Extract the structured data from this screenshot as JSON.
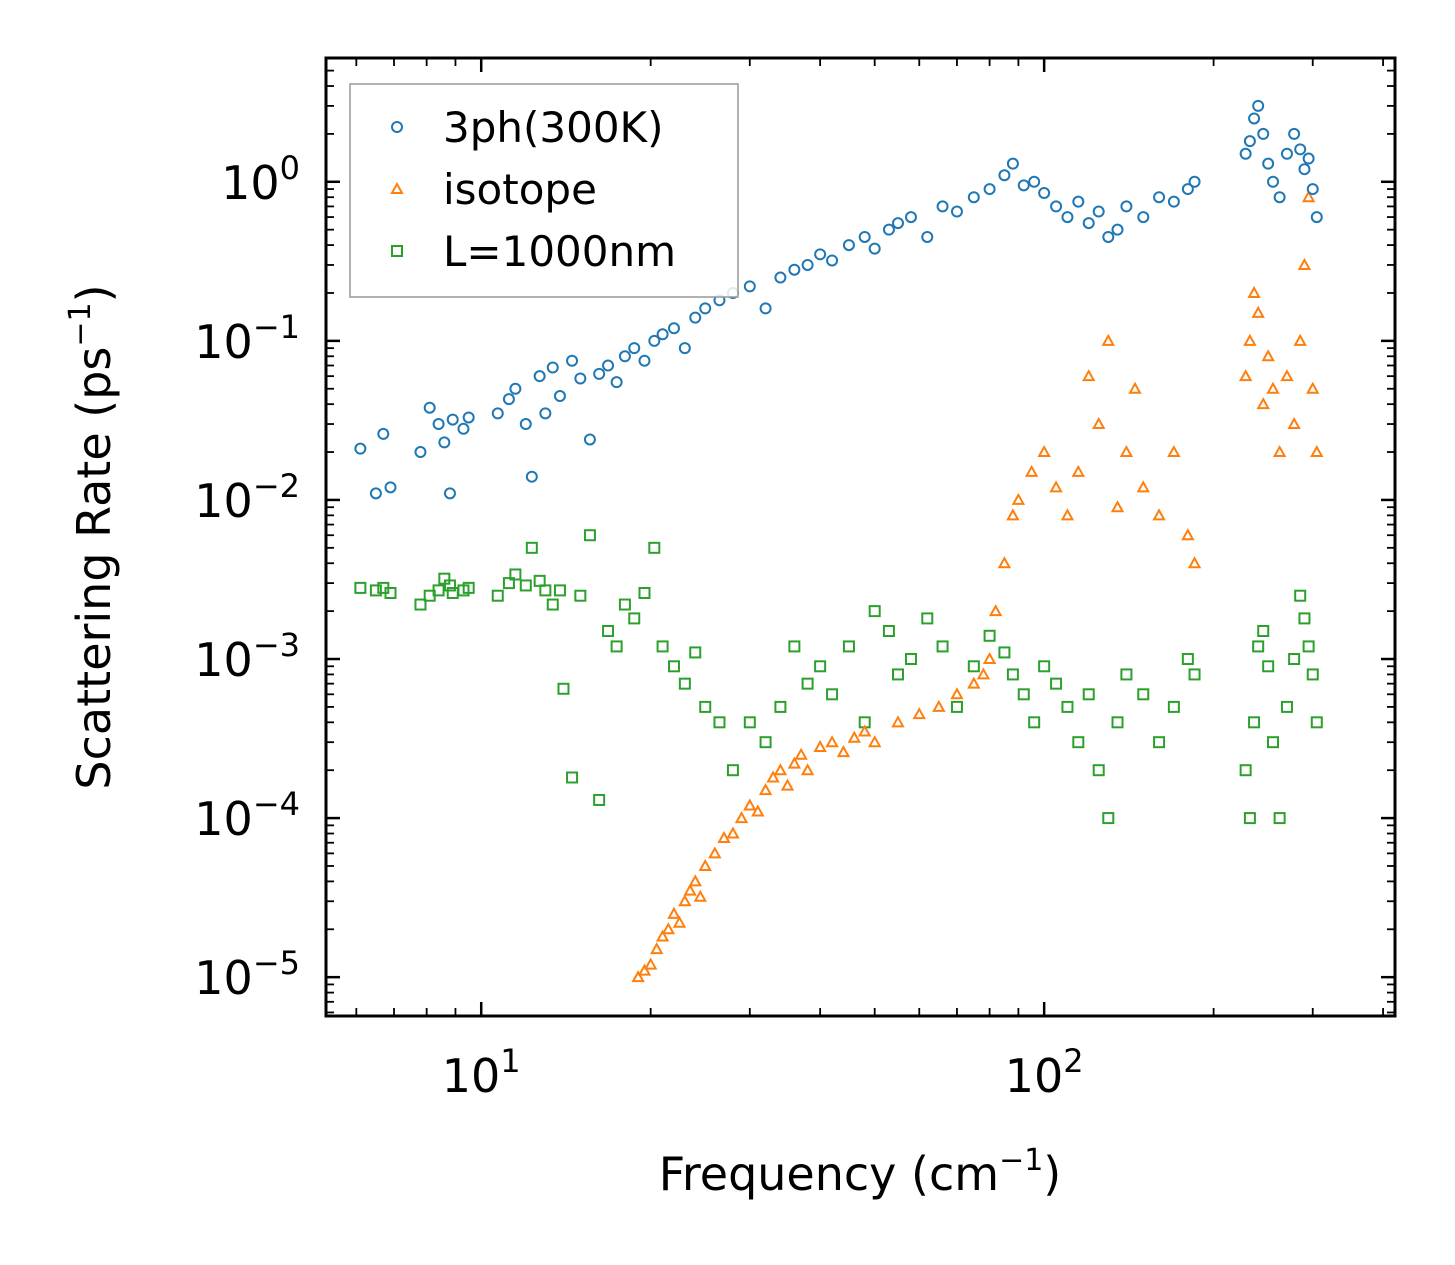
{
  "chart_data": {
    "type": "scatter",
    "title": "",
    "xlabel": "Frequency (cm",
    "xlabel_sup": "−1",
    "xlabel_close": ")",
    "ylabel": "Scattering Rate (ps",
    "ylabel_sup": "−1",
    "ylabel_close": ")",
    "xscale": "log",
    "yscale": "log",
    "xlim": [
      5.3,
      420
    ],
    "ylim": [
      5.7e-06,
      6.0
    ],
    "x_ticks": [
      {
        "base": "10",
        "exp": "1",
        "value": 10
      },
      {
        "base": "10",
        "exp": "2",
        "value": 100
      }
    ],
    "y_ticks": [
      {
        "base": "10",
        "exp": "0",
        "value": 1
      },
      {
        "base": "10",
        "exp": "−1",
        "value": 0.1
      },
      {
        "base": "10",
        "exp": "−2",
        "value": 0.01
      },
      {
        "base": "10",
        "exp": "−3",
        "value": 0.001
      },
      {
        "base": "10",
        "exp": "−4",
        "value": 0.0001
      },
      {
        "base": "10",
        "exp": "−5",
        "value": 1e-05
      }
    ],
    "legend_position": "top-left",
    "series": [
      {
        "name": "3ph(300K)",
        "color": "#1f77b4",
        "marker": "circle",
        "x": [
          6.1,
          6.5,
          6.7,
          6.9,
          7.8,
          8.1,
          8.4,
          8.6,
          8.8,
          8.9,
          9.3,
          9.5,
          10.7,
          11.2,
          11.5,
          12.0,
          12.3,
          12.7,
          13.0,
          13.4,
          13.8,
          14.5,
          15.0,
          15.6,
          16.2,
          16.8,
          17.4,
          18.0,
          18.7,
          19.5,
          20.3,
          21.0,
          22.0,
          23.0,
          24.0,
          25.0,
          26.5,
          28.0,
          30.0,
          32.0,
          34.0,
          36.0,
          38.0,
          40.0,
          42.0,
          45.0,
          48.0,
          50.0,
          53.0,
          55.0,
          58.0,
          62.0,
          66.0,
          70.0,
          75.0,
          80.0,
          85.0,
          88.0,
          92.0,
          96.0,
          100.0,
          105.0,
          110.0,
          115.0,
          120.0,
          125.0,
          130.0,
          135.0,
          140.0,
          150.0,
          160.0,
          170.0,
          180.0,
          185.0,
          228.0,
          232.0,
          236.0,
          240.0,
          245.0,
          250.0,
          255.0,
          262.0,
          270.0,
          278.0,
          285.0,
          290.0,
          295.0,
          300.0,
          305.0
        ],
        "y": [
          0.021,
          0.011,
          0.026,
          0.012,
          0.02,
          0.038,
          0.03,
          0.023,
          0.011,
          0.032,
          0.028,
          0.033,
          0.035,
          0.043,
          0.05,
          0.03,
          0.014,
          0.06,
          0.035,
          0.068,
          0.045,
          0.075,
          0.058,
          0.024,
          0.062,
          0.07,
          0.055,
          0.08,
          0.09,
          0.075,
          0.1,
          0.11,
          0.12,
          0.09,
          0.14,
          0.16,
          0.18,
          0.2,
          0.22,
          0.16,
          0.25,
          0.28,
          0.3,
          0.35,
          0.32,
          0.4,
          0.45,
          0.38,
          0.5,
          0.55,
          0.6,
          0.45,
          0.7,
          0.65,
          0.8,
          0.9,
          1.1,
          1.3,
          0.95,
          1.0,
          0.85,
          0.7,
          0.6,
          0.75,
          0.55,
          0.65,
          0.45,
          0.5,
          0.7,
          0.6,
          0.8,
          0.75,
          0.9,
          1.0,
          1.5,
          1.8,
          2.5,
          3.0,
          2.0,
          1.3,
          1.0,
          0.8,
          1.5,
          2.0,
          1.6,
          1.2,
          1.4,
          0.9,
          0.6
        ]
      },
      {
        "name": "isotope",
        "color": "#ff7f0e",
        "marker": "triangle",
        "x": [
          19.0,
          19.5,
          20.0,
          20.5,
          21.0,
          21.5,
          22.0,
          22.5,
          23.0,
          23.5,
          24.0,
          24.5,
          25.0,
          26.0,
          27.0,
          28.0,
          29.0,
          30.0,
          31.0,
          32.0,
          33.0,
          34.0,
          35.0,
          36.0,
          37.0,
          38.0,
          40.0,
          42.0,
          44.0,
          46.0,
          48.0,
          50.0,
          55.0,
          60.0,
          65.0,
          70.0,
          75.0,
          78.0,
          80.0,
          82.0,
          85.0,
          88.0,
          90.0,
          95.0,
          100.0,
          105.0,
          110.0,
          115.0,
          120.0,
          125.0,
          130.0,
          135.0,
          140.0,
          145.0,
          150.0,
          160.0,
          170.0,
          180.0,
          185.0,
          228.0,
          232.0,
          236.0,
          240.0,
          245.0,
          250.0,
          255.0,
          262.0,
          270.0,
          278.0,
          285.0,
          290.0,
          295.0,
          300.0,
          305.0
        ],
        "y": [
          1e-05,
          1.1e-05,
          1.2e-05,
          1.5e-05,
          1.8e-05,
          2e-05,
          2.5e-05,
          2.2e-05,
          3e-05,
          3.5e-05,
          4e-05,
          3.2e-05,
          5e-05,
          6e-05,
          7.5e-05,
          8e-05,
          0.0001,
          0.00012,
          0.00011,
          0.00015,
          0.00018,
          0.0002,
          0.00016,
          0.00022,
          0.00025,
          0.0002,
          0.00028,
          0.0003,
          0.00026,
          0.00032,
          0.00035,
          0.0003,
          0.0004,
          0.00045,
          0.0005,
          0.0006,
          0.0007,
          0.0008,
          0.001,
          0.002,
          0.004,
          0.008,
          0.01,
          0.015,
          0.02,
          0.012,
          0.008,
          0.015,
          0.06,
          0.03,
          0.1,
          0.009,
          0.02,
          0.05,
          0.012,
          0.008,
          0.02,
          0.006,
          0.004,
          0.06,
          0.1,
          0.2,
          0.15,
          0.04,
          0.08,
          0.05,
          0.02,
          0.06,
          0.03,
          0.1,
          0.3,
          0.8,
          0.05,
          0.02
        ]
      },
      {
        "name": "L=1000nm",
        "color": "#2ca02c",
        "marker": "square",
        "x": [
          6.1,
          6.5,
          6.7,
          6.9,
          7.8,
          8.1,
          8.4,
          8.6,
          8.8,
          8.9,
          9.3,
          9.5,
          10.7,
          11.2,
          11.5,
          12.0,
          12.3,
          12.7,
          13.0,
          13.4,
          13.8,
          14.0,
          14.5,
          15.0,
          15.6,
          16.2,
          16.8,
          17.4,
          18.0,
          18.7,
          19.5,
          20.3,
          21.0,
          22.0,
          23.0,
          24.0,
          25.0,
          26.5,
          28.0,
          30.0,
          32.0,
          34.0,
          36.0,
          38.0,
          40.0,
          42.0,
          45.0,
          48.0,
          50.0,
          53.0,
          55.0,
          58.0,
          62.0,
          66.0,
          70.0,
          75.0,
          80.0,
          85.0,
          88.0,
          92.0,
          96.0,
          100.0,
          105.0,
          110.0,
          115.0,
          120.0,
          125.0,
          130.0,
          135.0,
          140.0,
          150.0,
          160.0,
          170.0,
          180.0,
          185.0,
          228.0,
          232.0,
          236.0,
          240.0,
          245.0,
          250.0,
          255.0,
          262.0,
          270.0,
          278.0,
          285.0,
          290.0,
          295.0,
          300.0,
          305.0
        ],
        "y": [
          0.0028,
          0.0027,
          0.0028,
          0.0026,
          0.0022,
          0.0025,
          0.0027,
          0.0032,
          0.0029,
          0.0026,
          0.0027,
          0.0028,
          0.0025,
          0.003,
          0.0034,
          0.0029,
          0.005,
          0.0031,
          0.0027,
          0.0022,
          0.0027,
          0.00065,
          0.00018,
          0.0025,
          0.006,
          0.00013,
          0.0015,
          0.0012,
          0.0022,
          0.0018,
          0.0026,
          0.005,
          0.0012,
          0.0009,
          0.0007,
          0.0011,
          0.0005,
          0.0004,
          0.0002,
          0.0004,
          0.0003,
          0.0005,
          0.0012,
          0.0007,
          0.0009,
          0.0006,
          0.0012,
          0.0004,
          0.002,
          0.0015,
          0.0008,
          0.001,
          0.0018,
          0.0012,
          0.0005,
          0.0009,
          0.0014,
          0.0011,
          0.0008,
          0.0006,
          0.0004,
          0.0009,
          0.0007,
          0.0005,
          0.0003,
          0.0006,
          0.0002,
          0.0001,
          0.0004,
          0.0008,
          0.0006,
          0.0003,
          0.0005,
          0.001,
          0.0008,
          0.0002,
          0.0001,
          0.0004,
          0.0012,
          0.0015,
          0.0009,
          0.0003,
          0.0001,
          0.0005,
          0.001,
          0.0025,
          0.0018,
          0.0012,
          0.0008,
          0.0004
        ]
      }
    ]
  }
}
